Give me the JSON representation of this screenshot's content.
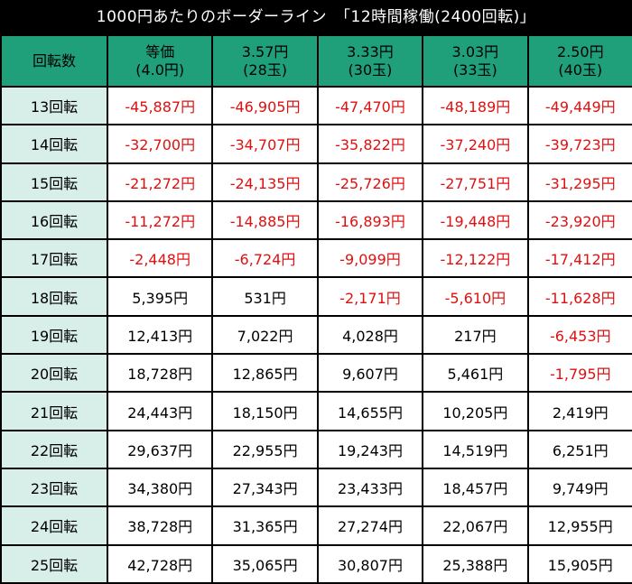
{
  "title": "1000円あたりのボーダーライン　「12時間稼働(2400回転)」",
  "colors": {
    "header_bg": "#1fa07a",
    "rowhead_bg": "#d8eee8",
    "negative": "#e01010",
    "positive": "#000000"
  },
  "columns": [
    {
      "line1": "回転数",
      "line2": ""
    },
    {
      "line1": "等価",
      "line2": "(4.0円)"
    },
    {
      "line1": "3.57円",
      "line2": "(28玉)"
    },
    {
      "line1": "3.33円",
      "line2": "(30玉)"
    },
    {
      "line1": "3.03円",
      "line2": "(33玉)"
    },
    {
      "line1": "2.50円",
      "line2": "(40玉)"
    }
  ],
  "rows": [
    {
      "label": "13回転",
      "values": [
        "-45,887円",
        "-46,905円",
        "-47,470円",
        "-48,189円",
        "-49,449円"
      ]
    },
    {
      "label": "14回転",
      "values": [
        "-32,700円",
        "-34,707円",
        "-35,822円",
        "-37,240円",
        "-39,723円"
      ]
    },
    {
      "label": "15回転",
      "values": [
        "-21,272円",
        "-24,135円",
        "-25,726円",
        "-27,751円",
        "-31,295円"
      ]
    },
    {
      "label": "16回転",
      "values": [
        "-11,272円",
        "-14,885円",
        "-16,893円",
        "-19,448円",
        "-23,920円"
      ]
    },
    {
      "label": "17回転",
      "values": [
        "-2,448円",
        "-6,724円",
        "-9,099円",
        "-12,122円",
        "-17,412円"
      ]
    },
    {
      "label": "18回転",
      "values": [
        "5,395円",
        "531円",
        "-2,171円",
        "-5,610円",
        "-11,628円"
      ]
    },
    {
      "label": "19回転",
      "values": [
        "12,413円",
        "7,022円",
        "4,028円",
        "217円",
        "-6,453円"
      ]
    },
    {
      "label": "20回転",
      "values": [
        "18,728円",
        "12,865円",
        "9,607円",
        "5,461円",
        "-1,795円"
      ]
    },
    {
      "label": "21回転",
      "values": [
        "24,443円",
        "18,150円",
        "14,655円",
        "10,205円",
        "2,419円"
      ]
    },
    {
      "label": "22回転",
      "values": [
        "29,637円",
        "22,955円",
        "19,243円",
        "14,519円",
        "6,251円"
      ]
    },
    {
      "label": "23回転",
      "values": [
        "34,380円",
        "27,343円",
        "23,433円",
        "18,457円",
        "9,749円"
      ]
    },
    {
      "label": "24回転",
      "values": [
        "38,728円",
        "31,365円",
        "27,274円",
        "22,067円",
        "12,955円"
      ]
    },
    {
      "label": "25回転",
      "values": [
        "42,728円",
        "35,065円",
        "30,807円",
        "25,388円",
        "15,905円"
      ]
    }
  ]
}
